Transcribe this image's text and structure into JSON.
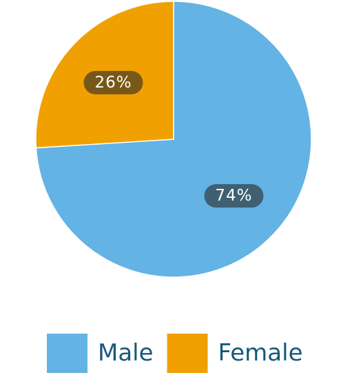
{
  "chart_data": {
    "type": "pie",
    "categories": [
      "Male",
      "Female"
    ],
    "values": [
      74,
      26
    ],
    "value_labels": [
      "74%",
      "26%"
    ],
    "colors": [
      "#63b3e4",
      "#f0a000"
    ]
  }
}
